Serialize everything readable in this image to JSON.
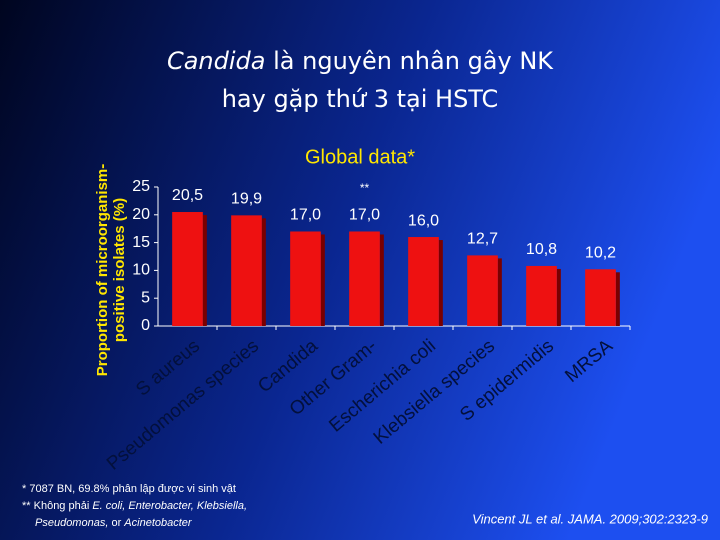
{
  "slide": {
    "title_italic": "Candida",
    "title_rest": "là nguyên nhân gây NK",
    "title_line2": "hay gặp thứ 3 tại HSTC",
    "footnote1": "* 7087 BN,  69.8% phân lập được vi sinh vật",
    "footnote2_a": "** Không phải ",
    "footnote2_b": "E. coli, Enterobacter, Klebsiella,",
    "footnote3_a": "Pseudomonas,",
    "footnote3_b": " or ",
    "footnote3_c": "Acinetobacter",
    "citation": "Vincent JL et al. JAMA. 2009;302:2323-9"
  },
  "chart_data": {
    "type": "bar",
    "title": "Global data*",
    "y_label_line1": "Proportion of microorganism-",
    "y_label_line2": "positive isolates (%)",
    "annotation": "**",
    "categories": [
      "S aureus",
      "Pseudomonas species",
      "Candida",
      "Other Gram-",
      "Escherichia coli",
      "Klebsiella species",
      "S epidermidis",
      "MRSA"
    ],
    "values": [
      20.5,
      19.9,
      17.0,
      17.0,
      16.0,
      12.7,
      10.8,
      10.2
    ],
    "value_labels": [
      "20,5",
      "19,9",
      "17,0",
      "17,0",
      "16,0",
      "12,7",
      "10,8",
      "10,2"
    ],
    "color": "#ee1111",
    "ylim": [
      0,
      25
    ],
    "yticks": [
      0,
      5,
      10,
      15,
      20,
      25
    ]
  }
}
